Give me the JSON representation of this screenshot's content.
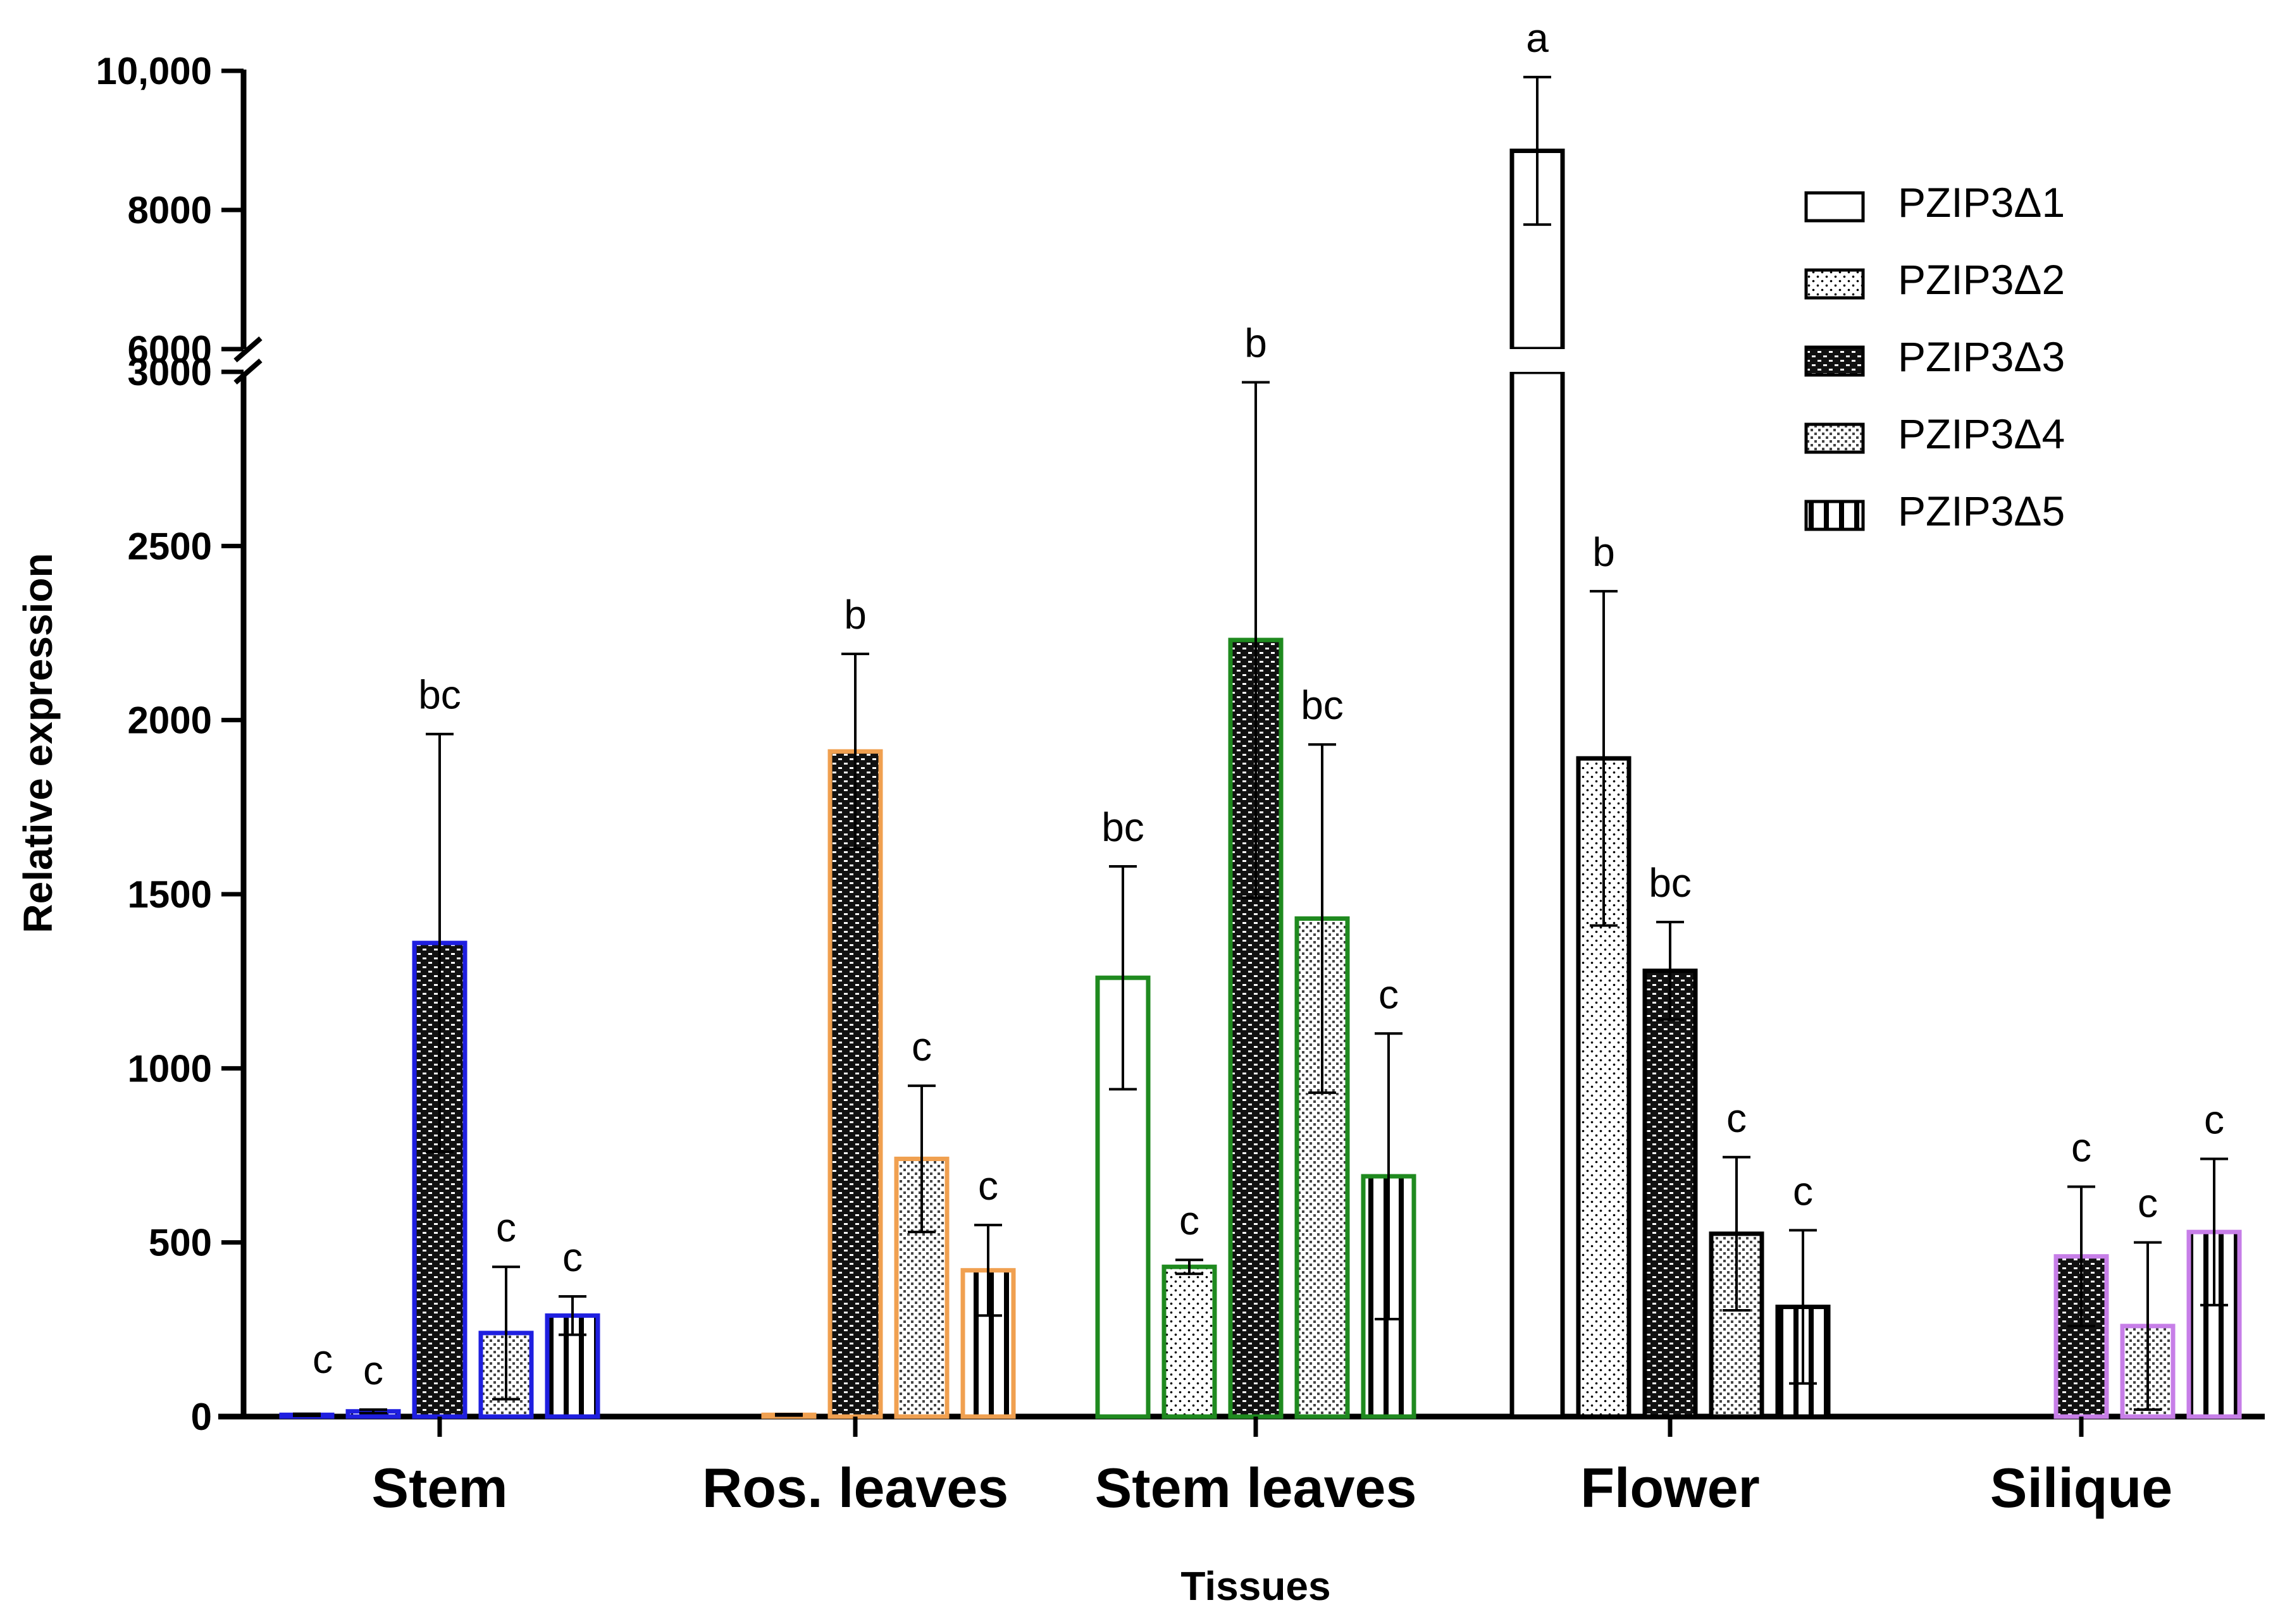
{
  "chart_data": {
    "type": "bar",
    "xlabel": "Tissues",
    "ylabel": "Relative expression",
    "categories": [
      "Stem",
      "Ros. leaves",
      "Stem leaves",
      "Flower",
      "Silique"
    ],
    "category_colors": [
      "#1f1fe0",
      "#f0a050",
      "#1f8a1f",
      "#000000",
      "#c77ee8"
    ],
    "axis": {
      "broken": true,
      "lower_range": [
        0,
        3000
      ],
      "upper_range": [
        6000,
        10000
      ],
      "lower_ticks": [
        {
          "value": 0,
          "label": "0"
        },
        {
          "value": 500,
          "label": "500"
        },
        {
          "value": 1000,
          "label": "1000"
        },
        {
          "value": 1500,
          "label": "1500"
        },
        {
          "value": 2000,
          "label": "2000"
        },
        {
          "value": 2500,
          "label": "2500"
        },
        {
          "value": 3000,
          "label": "3000"
        }
      ],
      "upper_ticks": [
        {
          "value": 6000,
          "label": "6000"
        },
        {
          "value": 8000,
          "label": "8000"
        },
        {
          "value": 10000,
          "label": "10,000"
        }
      ]
    },
    "series": [
      {
        "name": "PZIP3Δ1",
        "pattern": "none",
        "values": [
          5,
          null,
          1260,
          8850,
          null
        ],
        "errors": [
          3,
          null,
          320,
          1060,
          null
        ],
        "significance": [
          "",
          "",
          "bc",
          "a",
          ""
        ]
      },
      {
        "name": "PZIP3Δ2",
        "pattern": "dots",
        "values": [
          15,
          5,
          430,
          1890,
          null
        ],
        "errors": [
          5,
          2,
          20,
          480,
          null
        ],
        "significance": [
          "c",
          "",
          "c",
          "b",
          ""
        ]
      },
      {
        "name": "PZIP3Δ3",
        "pattern": "dark",
        "values": [
          1360,
          1910,
          2230,
          1280,
          460
        ],
        "errors": [
          600,
          280,
          740,
          140,
          200
        ],
        "significance": [
          "bc",
          "b",
          "b",
          "bc",
          "c"
        ]
      },
      {
        "name": "PZIP3Δ4",
        "pattern": "checker",
        "values": [
          240,
          740,
          1430,
          525,
          260
        ],
        "errors": [
          190,
          210,
          500,
          220,
          240
        ],
        "significance": [
          "c",
          "c",
          "bc",
          "c",
          "c"
        ]
      },
      {
        "name": "PZIP3Δ5",
        "pattern": "stripes",
        "values": [
          290,
          420,
          690,
          315,
          530
        ],
        "errors": [
          55,
          130,
          410,
          220,
          210
        ],
        "significance": [
          "c",
          "c",
          "c",
          "c",
          "c"
        ]
      }
    ],
    "extra_labels": [
      {
        "category": "Stem",
        "text": "c"
      }
    ],
    "legend_position": "top-right"
  }
}
